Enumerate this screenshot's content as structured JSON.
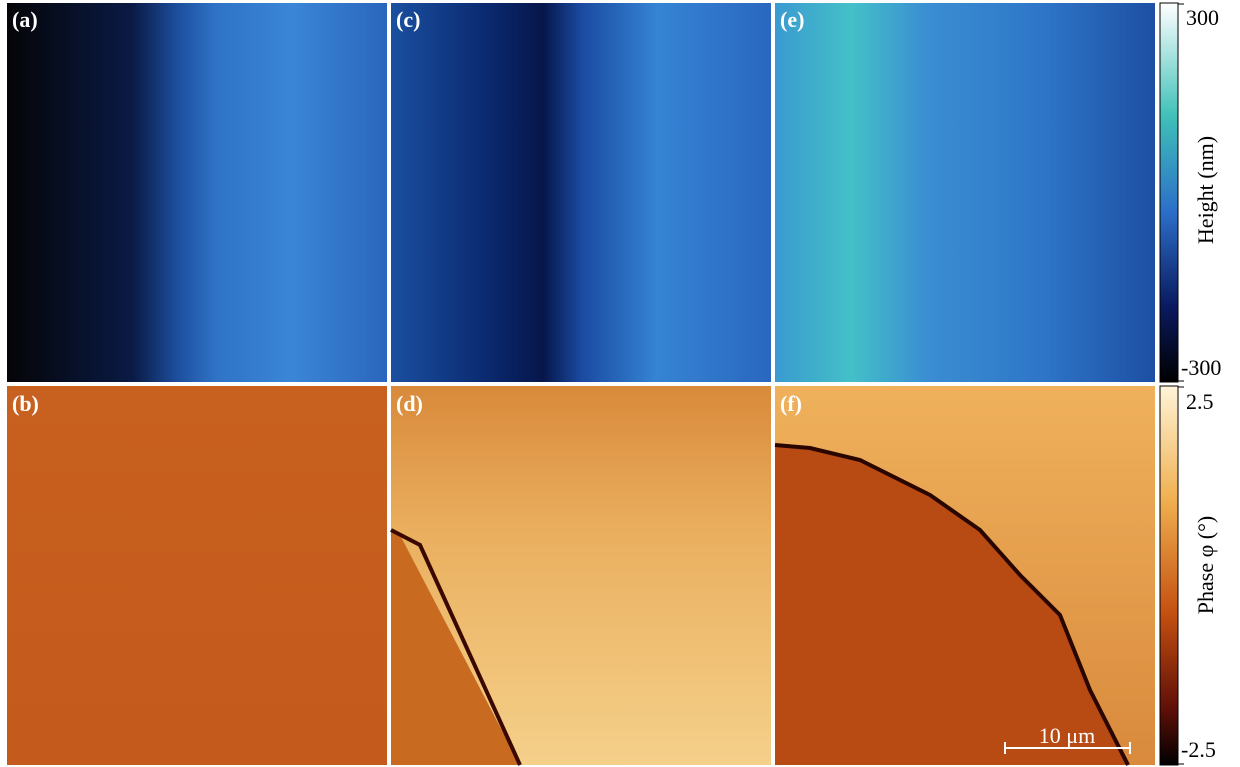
{
  "panels": [
    {
      "label": "(a)"
    },
    {
      "label": "(c)"
    },
    {
      "label": "(e)"
    },
    {
      "label": "(b)"
    },
    {
      "label": "(d)"
    },
    {
      "label": "(f)"
    }
  ],
  "colorbars": [
    {
      "title": "Height (nm)",
      "max": 300,
      "min": -300
    },
    {
      "title": "Phase φ (°)",
      "max": 2.5,
      "min": -2.5
    }
  ],
  "scale_bar": "10 μm"
}
